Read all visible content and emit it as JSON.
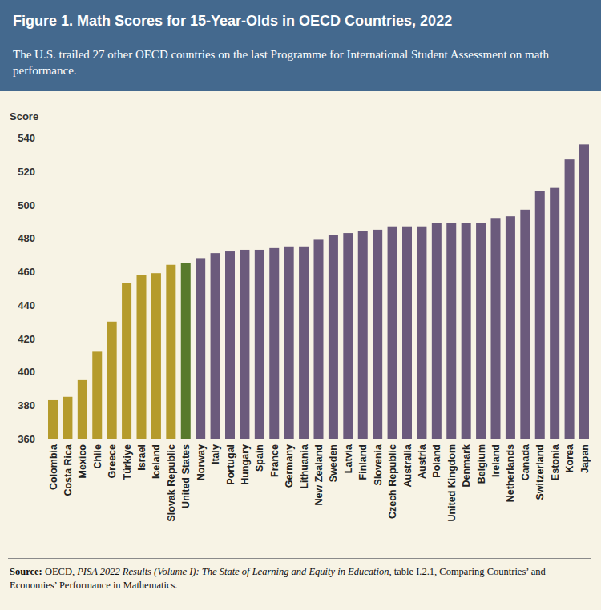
{
  "chart_data": {
    "type": "bar",
    "title": "Figure 1. Math Scores for 15-Year-Olds in OECD Countries, 2022",
    "subtitle": "The U.S. trailed 27 other OECD countries on the last Programme for International Student Assessment on math performance.",
    "y_label": "Score",
    "categories": [
      "Colombia",
      "Costa Rica",
      "Mexico",
      "Chile",
      "Greece",
      "Türkiye",
      "Israel",
      "Iceland",
      "Slovak Republic",
      "United States",
      "Norway",
      "Italy",
      "Portugal",
      "Hungary",
      "Spain",
      "France",
      "Germany",
      "Lithuania",
      "New Zealand",
      "Sweden",
      "Latvia",
      "Finland",
      "Slovenia",
      "Czech Republic",
      "Australia",
      "Austria",
      "Poland",
      "United Kingdom",
      "Denmark",
      "Belgium",
      "Ireland",
      "Netherlands",
      "Canada",
      "Switzerland",
      "Estonia",
      "Korea",
      "Japan"
    ],
    "values": [
      383,
      385,
      395,
      412,
      430,
      453,
      458,
      459,
      464,
      465,
      468,
      471,
      472,
      473,
      473,
      474,
      475,
      475,
      479,
      482,
      483,
      484,
      485,
      487,
      487,
      487,
      489,
      489,
      489,
      489,
      492,
      493,
      497,
      508,
      510,
      527,
      536
    ],
    "colors": [
      "#b59b2c",
      "#b59b2c",
      "#b59b2c",
      "#b59b2c",
      "#b59b2c",
      "#b59b2c",
      "#b59b2c",
      "#b59b2c",
      "#b59b2c",
      "#587a2c",
      "#6b5a7c",
      "#6b5a7c",
      "#6b5a7c",
      "#6b5a7c",
      "#6b5a7c",
      "#6b5a7c",
      "#6b5a7c",
      "#6b5a7c",
      "#6b5a7c",
      "#6b5a7c",
      "#6b5a7c",
      "#6b5a7c",
      "#6b5a7c",
      "#6b5a7c",
      "#6b5a7c",
      "#6b5a7c",
      "#6b5a7c",
      "#6b5a7c",
      "#6b5a7c",
      "#6b5a7c",
      "#6b5a7c",
      "#6b5a7c",
      "#6b5a7c",
      "#6b5a7c",
      "#6b5a7c",
      "#6b5a7c",
      "#6b5a7c"
    ],
    "ylim": [
      360,
      540
    ],
    "yticks": [
      360,
      380,
      400,
      420,
      440,
      460,
      480,
      500,
      520,
      540
    ],
    "grid": false,
    "source": {
      "label": "Source:",
      "prefix": " OECD, ",
      "title": "PISA 2022 Results (Volume I): The State of Learning and Equity in Education",
      "suffix": ", table I.2.1, Comparing Countries’ and Economies’ Performance in Mathematics."
    }
  }
}
